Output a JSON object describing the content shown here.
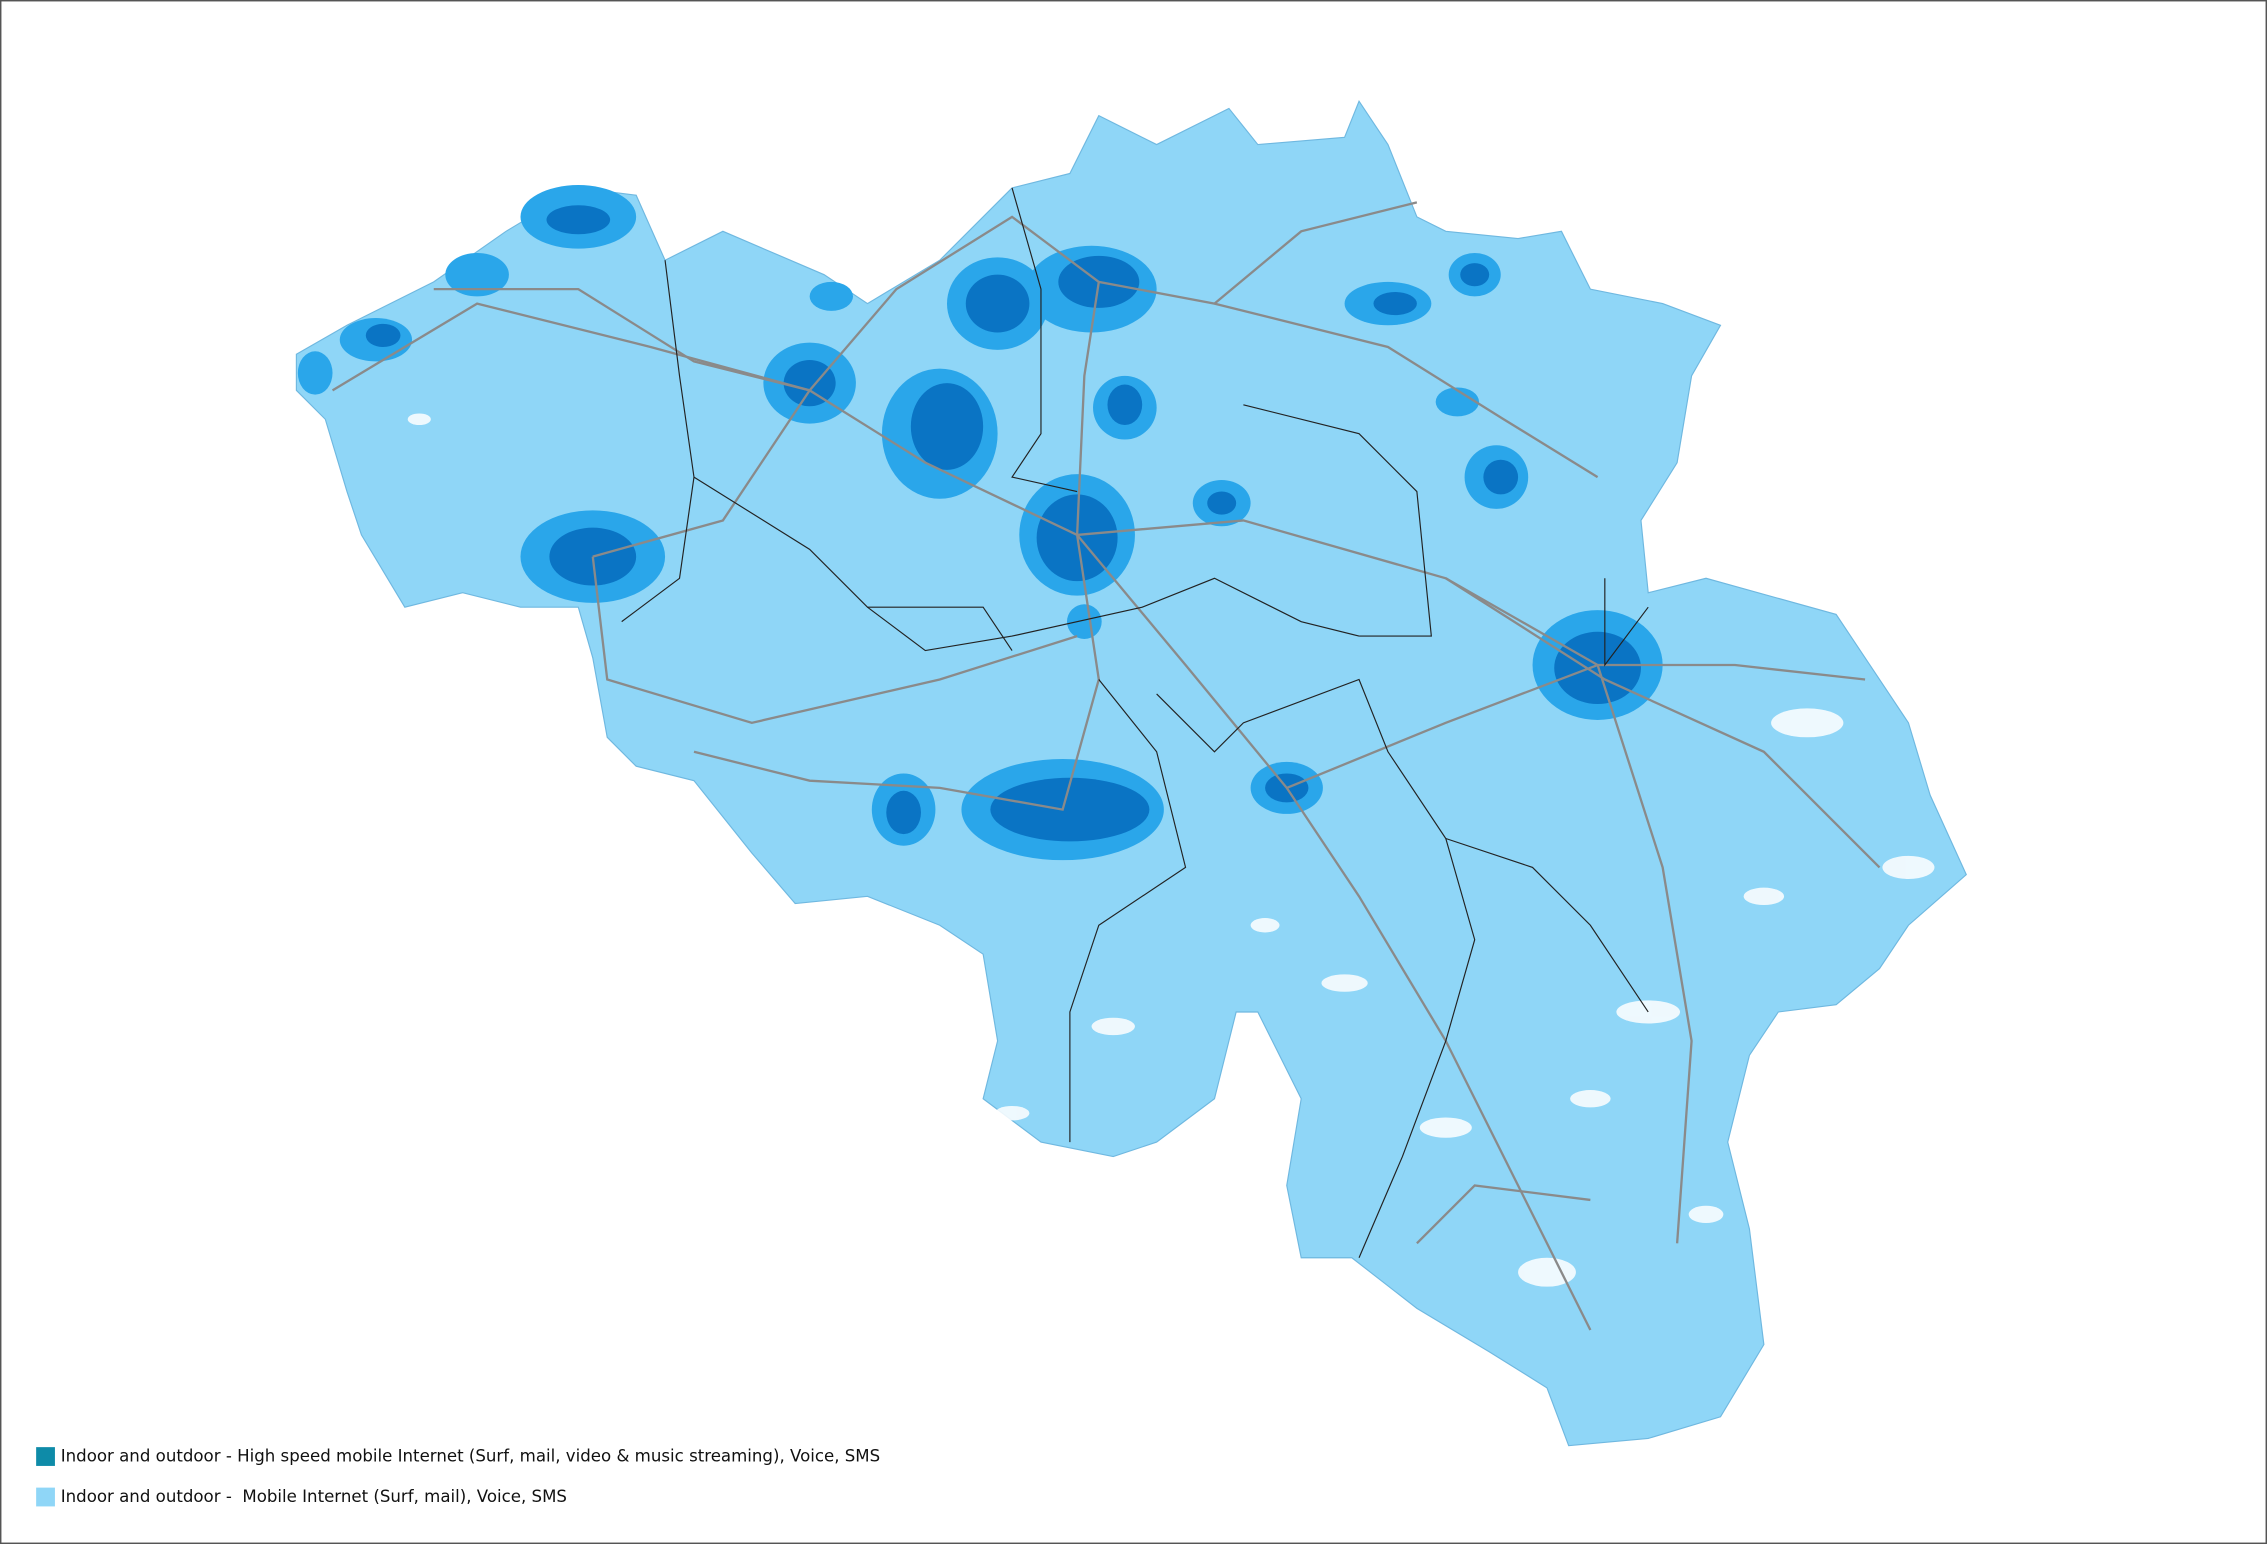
{
  "legend": {
    "items": [
      {
        "label": "Indoor and outdoor - High speed mobile Internet (Surf, mail, video & music streaming), Voice, SMS",
        "color": "#0e8ba8"
      },
      {
        "label": "Indoor and outdoor -  Mobile Internet (Surf, mail), Voice, SMS",
        "color": "#8fd6f7"
      }
    ]
  }
}
